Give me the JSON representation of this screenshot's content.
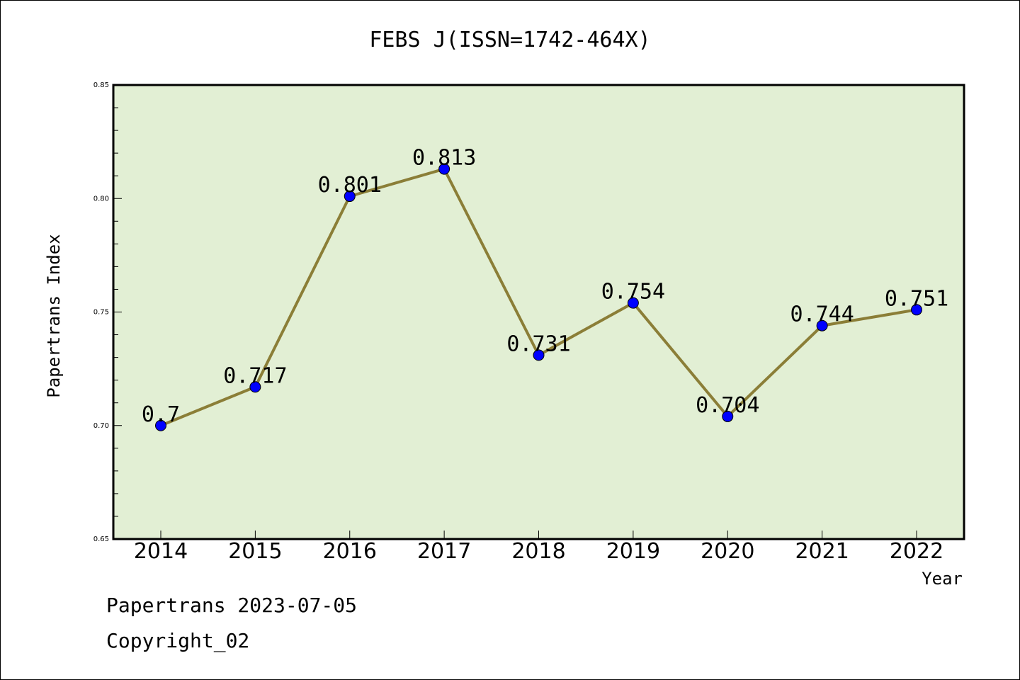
{
  "chart_data": {
    "type": "line",
    "title": "FEBS J(ISSN=1742-464X)",
    "xlabel": "Year",
    "ylabel": "Papertrans Index",
    "categories": [
      "2014",
      "2015",
      "2016",
      "2017",
      "2018",
      "2019",
      "2020",
      "2021",
      "2022"
    ],
    "series": [
      {
        "values": [
          0.7,
          0.717,
          0.801,
          0.813,
          0.731,
          0.754,
          0.704,
          0.744,
          0.751
        ],
        "labels": [
          "0.7",
          "0.717",
          "0.801",
          "0.813",
          "0.731",
          "0.754",
          "0.704",
          "0.744",
          "0.751"
        ]
      }
    ],
    "ylim": [
      0.65,
      0.85
    ],
    "yticks": [
      "0.65",
      "0.70",
      "0.75",
      "0.80",
      "0.85"
    ],
    "yticks_values": [
      0.65,
      0.7,
      0.75,
      0.8,
      0.85
    ],
    "grid": false,
    "colors": {
      "plot_background": "#e2efd4",
      "line": "#8b7e37",
      "marker": "#0000ff"
    }
  },
  "footer": {
    "date_line": "Papertrans 2023-07-05",
    "copyright": "Copyright_02"
  }
}
